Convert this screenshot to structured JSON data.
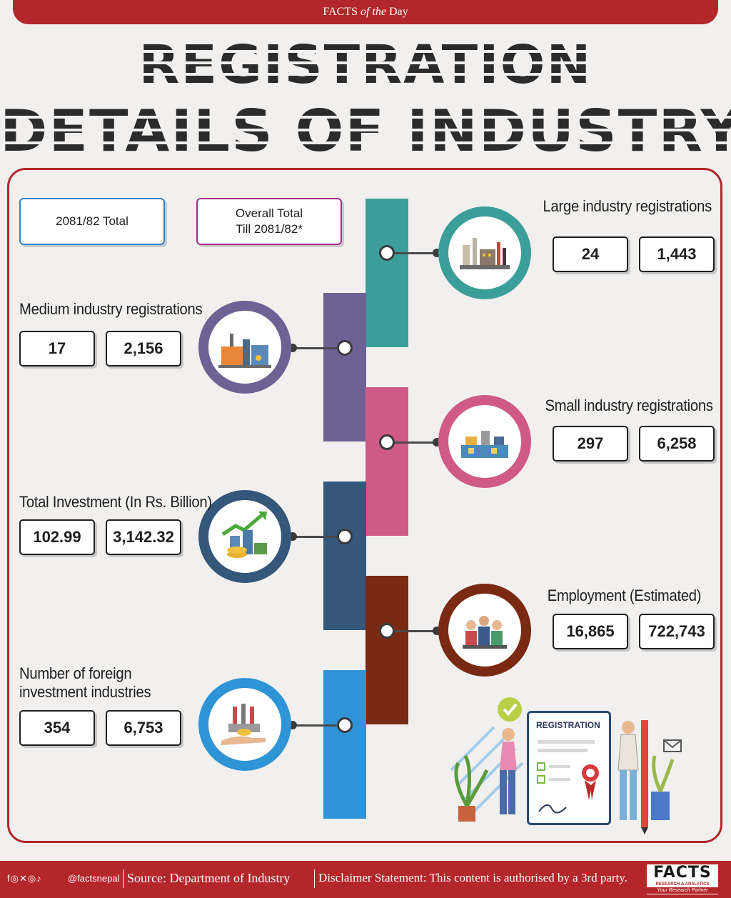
{
  "header": {
    "brand_prefix": "FACTS ",
    "brand_mid": "of the",
    "brand_suffix": " Day"
  },
  "title": {
    "line1": "REGISTRATION",
    "line2": "DETAILS OF INDUSTRY"
  },
  "legend": {
    "current": "2081/82 Total",
    "overall_line1": "Overall Total",
    "overall_line2": "Till 2081/82*"
  },
  "rows": [
    {
      "label": "Large industry registrations",
      "current": "24",
      "overall": "1,443",
      "color": "#3b9e9a",
      "icon": "large-factory-icon"
    },
    {
      "label": "Medium industry registrations",
      "current": "17",
      "overall": "2,156",
      "color": "#6e6294",
      "icon": "medium-factory-icon"
    },
    {
      "label": "Small industry registrations",
      "current": "297",
      "overall": "6,258",
      "color": "#cf5a86",
      "icon": "small-industry-icon"
    },
    {
      "label": "Total Investment (In Rs. Billion)",
      "current": "102.99",
      "overall": "3,142.32",
      "color": "#34577a",
      "icon": "investment-growth-icon"
    },
    {
      "label": "Employment (Estimated)",
      "current": "16,865",
      "overall": "722,743",
      "color": "#7a2a12",
      "icon": "employees-group-icon"
    },
    {
      "label_line1": "Number of foreign",
      "label_line2": "investment industries",
      "current": "354",
      "overall": "6,753",
      "color": "#2f94d6",
      "icon": "foreign-investment-icon"
    }
  ],
  "illustration": {
    "card_title": "REGISTRATION"
  },
  "footer": {
    "social": "f◎✕◎♪",
    "handle": "@factsnepal",
    "source": "Source: Department of Industry",
    "disclaimer": "Disclaimer Statement: This content is authorised by a 3rd party.",
    "logo_main": "FACTS",
    "logo_sub": "RESEARCH & ANALYTICS",
    "logo_tag": "Your Research Partner"
  },
  "colors": {
    "accent": "#b3262a",
    "current_border": "#2f82c5",
    "overall_border": "#a52a8e"
  }
}
